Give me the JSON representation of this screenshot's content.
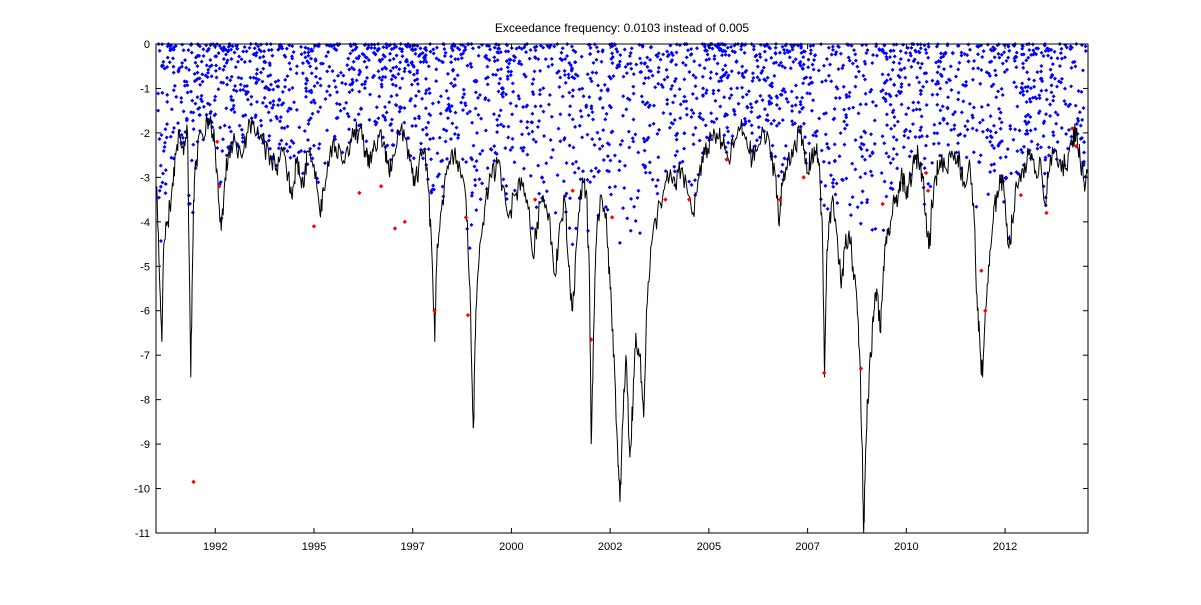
{
  "chart_data": {
    "type": "scatter",
    "title": "Exceedance frequency: 0.0103 instead of 0.005",
    "xlabel": "",
    "ylabel": "",
    "xlim": [
      1990.7,
      2014.3
    ],
    "ylim": [
      -11,
      0
    ],
    "xticks": [
      {
        "value": 1992.2,
        "label": "1992"
      },
      {
        "value": 1994.7,
        "label": "1995"
      },
      {
        "value": 1997.2,
        "label": "1997"
      },
      {
        "value": 1999.7,
        "label": "2000"
      },
      {
        "value": 2002.2,
        "label": "2002"
      },
      {
        "value": 2004.7,
        "label": "2005"
      },
      {
        "value": 2007.2,
        "label": "2007"
      },
      {
        "value": 2009.7,
        "label": "2010"
      },
      {
        "value": 2012.2,
        "label": "2012"
      }
    ],
    "yticks": [
      0,
      -1,
      -2,
      -3,
      -4,
      -5,
      -6,
      -7,
      -8,
      -9,
      -10,
      -11
    ],
    "grid": false,
    "legend": "none",
    "colors": {
      "line": "#000000",
      "returns": "#0000ff",
      "exceedances": "#ff0000"
    },
    "series": [
      {
        "kind": "line",
        "points": [
          [
            1990.72,
            -3.2
          ],
          [
            1990.8,
            -5.5
          ],
          [
            1990.85,
            -6.7
          ],
          [
            1990.9,
            -4.5
          ],
          [
            1991.0,
            -4.0
          ],
          [
            1991.1,
            -3.3
          ],
          [
            1991.2,
            -2.5
          ],
          [
            1991.3,
            -2.1
          ],
          [
            1991.4,
            -2.5
          ],
          [
            1991.5,
            -2.0
          ],
          [
            1991.58,
            -7.5
          ],
          [
            1991.65,
            -3.5
          ],
          [
            1991.72,
            -2.6
          ],
          [
            1991.85,
            -2.0
          ],
          [
            1992.0,
            -1.7
          ],
          [
            1992.1,
            -1.9
          ],
          [
            1992.2,
            -2.3
          ],
          [
            1992.28,
            -3.5
          ],
          [
            1992.35,
            -4.2
          ],
          [
            1992.45,
            -3.0
          ],
          [
            1992.55,
            -2.4
          ],
          [
            1992.7,
            -2.2
          ],
          [
            1992.85,
            -2.5
          ],
          [
            1993.0,
            -2.0
          ],
          [
            1993.15,
            -1.8
          ],
          [
            1993.3,
            -2.1
          ],
          [
            1993.45,
            -2.3
          ],
          [
            1993.6,
            -2.5
          ],
          [
            1993.75,
            -2.8
          ],
          [
            1993.9,
            -2.4
          ],
          [
            1994.05,
            -2.9
          ],
          [
            1994.15,
            -3.5
          ],
          [
            1994.25,
            -2.7
          ],
          [
            1994.35,
            -3.0
          ],
          [
            1994.45,
            -3.2
          ],
          [
            1994.55,
            -2.4
          ],
          [
            1994.7,
            -2.7
          ],
          [
            1994.85,
            -3.8
          ],
          [
            1994.95,
            -3.3
          ],
          [
            1995.1,
            -2.5
          ],
          [
            1995.25,
            -2.3
          ],
          [
            1995.4,
            -2.6
          ],
          [
            1995.55,
            -2.3
          ],
          [
            1995.7,
            -2.1
          ],
          [
            1995.85,
            -1.9
          ],
          [
            1996.0,
            -2.4
          ],
          [
            1996.1,
            -2.8
          ],
          [
            1996.2,
            -2.4
          ],
          [
            1996.35,
            -2.1
          ],
          [
            1996.5,
            -2.3
          ],
          [
            1996.6,
            -2.9
          ],
          [
            1996.7,
            -2.5
          ],
          [
            1996.85,
            -2.0
          ],
          [
            1997.0,
            -2.1
          ],
          [
            1997.15,
            -2.6
          ],
          [
            1997.25,
            -3.2
          ],
          [
            1997.35,
            -2.8
          ],
          [
            1997.5,
            -2.4
          ],
          [
            1997.6,
            -3.3
          ],
          [
            1997.7,
            -5.0
          ],
          [
            1997.76,
            -6.7
          ],
          [
            1997.82,
            -4.5
          ],
          [
            1997.95,
            -3.5
          ],
          [
            1998.1,
            -2.8
          ],
          [
            1998.25,
            -2.5
          ],
          [
            1998.4,
            -2.8
          ],
          [
            1998.55,
            -3.5
          ],
          [
            1998.65,
            -5.5
          ],
          [
            1998.7,
            -7.5
          ],
          [
            1998.74,
            -8.6
          ],
          [
            1998.8,
            -6.0
          ],
          [
            1998.9,
            -4.5
          ],
          [
            1999.05,
            -3.5
          ],
          [
            1999.2,
            -3.0
          ],
          [
            1999.35,
            -2.7
          ],
          [
            1999.5,
            -3.2
          ],
          [
            1999.65,
            -3.8
          ],
          [
            1999.8,
            -3.4
          ],
          [
            1999.95,
            -3.0
          ],
          [
            2000.1,
            -3.5
          ],
          [
            2000.25,
            -4.8
          ],
          [
            2000.35,
            -4.0
          ],
          [
            2000.5,
            -3.4
          ],
          [
            2000.65,
            -3.8
          ],
          [
            2000.8,
            -5.2
          ],
          [
            2000.9,
            -4.3
          ],
          [
            2001.05,
            -3.5
          ],
          [
            2001.15,
            -5.0
          ],
          [
            2001.25,
            -6.0
          ],
          [
            2001.35,
            -4.5
          ],
          [
            2001.5,
            -3.0
          ],
          [
            2001.6,
            -3.3
          ],
          [
            2001.68,
            -5.5
          ],
          [
            2001.72,
            -9.0
          ],
          [
            2001.78,
            -6.5
          ],
          [
            2001.85,
            -4.5
          ],
          [
            2001.95,
            -3.4
          ],
          [
            2002.1,
            -3.8
          ],
          [
            2002.2,
            -5.5
          ],
          [
            2002.3,
            -7.0
          ],
          [
            2002.4,
            -9.5
          ],
          [
            2002.45,
            -10.3
          ],
          [
            2002.52,
            -8.5
          ],
          [
            2002.6,
            -7.0
          ],
          [
            2002.7,
            -9.3
          ],
          [
            2002.78,
            -8.0
          ],
          [
            2002.85,
            -6.5
          ],
          [
            2002.95,
            -7.0
          ],
          [
            2003.05,
            -8.4
          ],
          [
            2003.12,
            -6.0
          ],
          [
            2003.25,
            -4.5
          ],
          [
            2003.4,
            -3.8
          ],
          [
            2003.55,
            -3.3
          ],
          [
            2003.7,
            -3.0
          ],
          [
            2003.85,
            -3.2
          ],
          [
            2004.0,
            -2.8
          ],
          [
            2004.15,
            -3.3
          ],
          [
            2004.3,
            -3.8
          ],
          [
            2004.45,
            -3.0
          ],
          [
            2004.6,
            -2.5
          ],
          [
            2004.75,
            -2.1
          ],
          [
            2004.9,
            -2.0
          ],
          [
            2005.05,
            -2.3
          ],
          [
            2005.2,
            -2.6
          ],
          [
            2005.35,
            -2.2
          ],
          [
            2005.5,
            -1.9
          ],
          [
            2005.65,
            -2.1
          ],
          [
            2005.8,
            -2.6
          ],
          [
            2005.95,
            -2.3
          ],
          [
            2006.1,
            -2.0
          ],
          [
            2006.25,
            -2.4
          ],
          [
            2006.4,
            -3.0
          ],
          [
            2006.48,
            -4.1
          ],
          [
            2006.55,
            -3.2
          ],
          [
            2006.7,
            -2.6
          ],
          [
            2006.85,
            -2.3
          ],
          [
            2007.0,
            -2.0
          ],
          [
            2007.1,
            -2.4
          ],
          [
            2007.2,
            -2.9
          ],
          [
            2007.3,
            -2.5
          ],
          [
            2007.4,
            -2.4
          ],
          [
            2007.5,
            -2.7
          ],
          [
            2007.58,
            -4.5
          ],
          [
            2007.63,
            -7.5
          ],
          [
            2007.68,
            -5.0
          ],
          [
            2007.75,
            -4.0
          ],
          [
            2007.85,
            -3.5
          ],
          [
            2007.95,
            -4.3
          ],
          [
            2008.05,
            -5.5
          ],
          [
            2008.15,
            -4.6
          ],
          [
            2008.25,
            -4.2
          ],
          [
            2008.35,
            -5.0
          ],
          [
            2008.45,
            -5.8
          ],
          [
            2008.52,
            -7.0
          ],
          [
            2008.58,
            -9.0
          ],
          [
            2008.62,
            -11.0
          ],
          [
            2008.66,
            -9.5
          ],
          [
            2008.72,
            -8.0
          ],
          [
            2008.8,
            -7.0
          ],
          [
            2008.88,
            -6.0
          ],
          [
            2008.95,
            -5.5
          ],
          [
            2009.05,
            -6.5
          ],
          [
            2009.12,
            -5.0
          ],
          [
            2009.2,
            -4.5
          ],
          [
            2009.3,
            -4.0
          ],
          [
            2009.4,
            -3.6
          ],
          [
            2009.5,
            -3.3
          ],
          [
            2009.6,
            -3.0
          ],
          [
            2009.7,
            -3.5
          ],
          [
            2009.8,
            -3.0
          ],
          [
            2009.9,
            -2.7
          ],
          [
            2010.0,
            -2.5
          ],
          [
            2010.1,
            -2.9
          ],
          [
            2010.2,
            -3.8
          ],
          [
            2010.28,
            -4.6
          ],
          [
            2010.35,
            -3.6
          ],
          [
            2010.45,
            -3.0
          ],
          [
            2010.55,
            -2.6
          ],
          [
            2010.7,
            -2.8
          ],
          [
            2010.85,
            -2.4
          ],
          [
            2011.0,
            -2.5
          ],
          [
            2011.1,
            -2.9
          ],
          [
            2011.2,
            -3.2
          ],
          [
            2011.3,
            -2.6
          ],
          [
            2011.42,
            -4.0
          ],
          [
            2011.5,
            -6.0
          ],
          [
            2011.58,
            -7.0
          ],
          [
            2011.63,
            -7.5
          ],
          [
            2011.7,
            -6.0
          ],
          [
            2011.8,
            -5.0
          ],
          [
            2011.9,
            -4.0
          ],
          [
            2012.0,
            -3.3
          ],
          [
            2012.1,
            -3.0
          ],
          [
            2012.2,
            -3.5
          ],
          [
            2012.3,
            -4.6
          ],
          [
            2012.38,
            -4.0
          ],
          [
            2012.5,
            -3.2
          ],
          [
            2012.65,
            -2.8
          ],
          [
            2012.8,
            -2.5
          ],
          [
            2012.95,
            -2.9
          ],
          [
            2013.1,
            -2.6
          ],
          [
            2013.22,
            -3.6
          ],
          [
            2013.3,
            -2.9
          ],
          [
            2013.45,
            -2.4
          ],
          [
            2013.6,
            -2.6
          ],
          [
            2013.75,
            -2.8
          ],
          [
            2013.9,
            -2.2
          ],
          [
            2014.0,
            -1.9
          ],
          [
            2014.1,
            -2.6
          ],
          [
            2014.2,
            -3.1
          ],
          [
            2014.28,
            -2.9
          ]
        ]
      },
      {
        "kind": "scatter",
        "color": "#ff0000",
        "points": [
          [
            1991.65,
            -9.85
          ],
          [
            1992.25,
            -2.2
          ],
          [
            1992.3,
            -3.2
          ],
          [
            1994.7,
            -4.1
          ],
          [
            1995.85,
            -3.35
          ],
          [
            1996.4,
            -3.2
          ],
          [
            1996.75,
            -4.15
          ],
          [
            1997.0,
            -4.0
          ],
          [
            1997.75,
            -6.0
          ],
          [
            1998.55,
            -3.9
          ],
          [
            1998.6,
            -6.1
          ],
          [
            2000.3,
            -3.5
          ],
          [
            2001.25,
            -3.3
          ],
          [
            2001.72,
            -6.65
          ],
          [
            2002.25,
            -3.9
          ],
          [
            2003.6,
            -3.5
          ],
          [
            2004.2,
            -3.5
          ],
          [
            2005.15,
            -2.6
          ],
          [
            2006.5,
            -3.5
          ],
          [
            2007.1,
            -3.0
          ],
          [
            2007.62,
            -7.4
          ],
          [
            2008.55,
            -7.3
          ],
          [
            2009.1,
            -3.6
          ],
          [
            2010.2,
            -2.9
          ],
          [
            2010.25,
            -3.3
          ],
          [
            2011.6,
            -5.1
          ],
          [
            2011.7,
            -6.0
          ],
          [
            2012.6,
            -3.4
          ],
          [
            2013.25,
            -3.8
          ],
          [
            2014.0,
            -2.3
          ],
          [
            2013.9,
            -1.9
          ]
        ]
      }
    ],
    "scatter_note": "blue returns cloud: approx. 6000 daily observations, values between 0 and about -7"
  }
}
